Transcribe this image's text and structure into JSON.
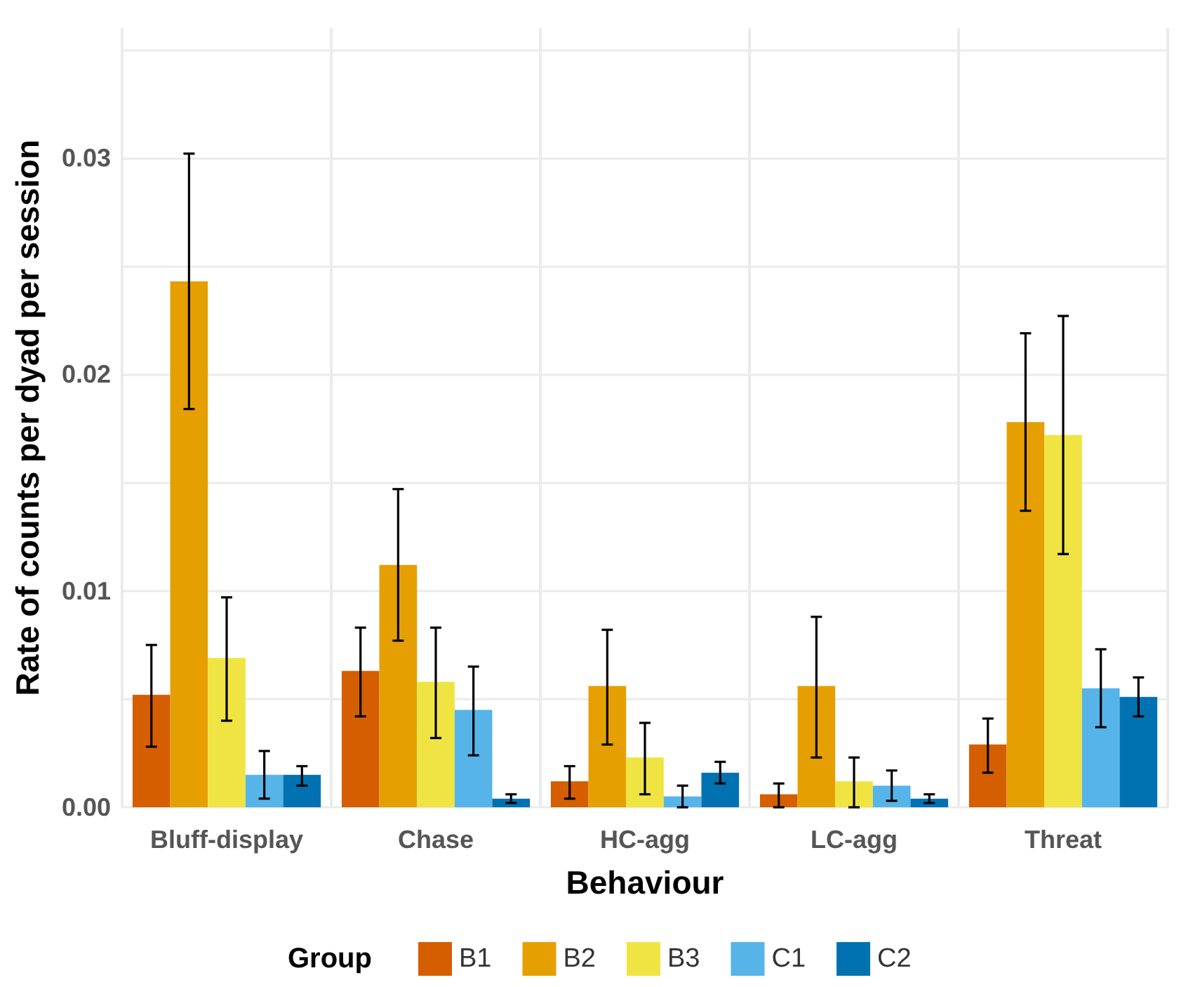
{
  "chart_data": {
    "type": "bar",
    "xlabel": "Behaviour",
    "ylabel": "Rate of counts per dyad per session",
    "legend_title": "Group",
    "legend": "bottom",
    "grid": true,
    "categories": [
      "Bluff-display",
      "Chase",
      "HC-agg",
      "LC-agg",
      "Threat"
    ],
    "ylim": [
      0,
      0.036
    ],
    "yticks": [
      {
        "value": 0,
        "label": "0.00"
      },
      {
        "value": 0.005,
        "label": null
      },
      {
        "value": 0.01,
        "label": "0.01"
      },
      {
        "value": 0.015,
        "label": null
      },
      {
        "value": 0.02,
        "label": "0.02"
      },
      {
        "value": 0.025,
        "label": null
      },
      {
        "value": 0.03,
        "label": "0.03"
      },
      {
        "value": 0.035,
        "label": null
      }
    ],
    "series": [
      {
        "name": "B1",
        "color": "#d55e00",
        "values": [
          0.0052,
          0.0063,
          0.0012,
          0.0006,
          0.0029
        ],
        "errors": [
          [
            0.0028,
            0.0075
          ],
          [
            0.0042,
            0.0083
          ],
          [
            0.0004,
            0.0019
          ],
          [
            0.0,
            0.0011
          ],
          [
            0.0016,
            0.0041
          ]
        ]
      },
      {
        "name": "B2",
        "color": "#e69f00",
        "values": [
          0.0243,
          0.0112,
          0.0056,
          0.0056,
          0.0178
        ],
        "errors": [
          [
            0.0184,
            0.0302
          ],
          [
            0.0077,
            0.0147
          ],
          [
            0.0029,
            0.0082
          ],
          [
            0.0023,
            0.0088
          ],
          [
            0.0137,
            0.0219
          ]
        ]
      },
      {
        "name": "B3",
        "color": "#f0e442",
        "values": [
          0.0069,
          0.0058,
          0.0023,
          0.0012,
          0.0172
        ],
        "errors": [
          [
            0.004,
            0.0097
          ],
          [
            0.0032,
            0.0083
          ],
          [
            0.0006,
            0.0039
          ],
          [
            0.0,
            0.0023
          ],
          [
            0.0117,
            0.0227
          ]
        ]
      },
      {
        "name": "C1",
        "color": "#56b4e9",
        "values": [
          0.0015,
          0.0045,
          0.0005,
          0.001,
          0.0055
        ],
        "errors": [
          [
            0.0004,
            0.0026
          ],
          [
            0.0024,
            0.0065
          ],
          [
            0.0,
            0.001
          ],
          [
            0.0003,
            0.0017
          ],
          [
            0.0037,
            0.0073
          ]
        ]
      },
      {
        "name": "C2",
        "color": "#0072b2",
        "values": [
          0.0015,
          0.0004,
          0.0016,
          0.0004,
          0.0051
        ],
        "errors": [
          [
            0.001,
            0.0019
          ],
          [
            0.0002,
            0.0006
          ],
          [
            0.0011,
            0.0021
          ],
          [
            0.0002,
            0.0006
          ],
          [
            0.0042,
            0.006
          ]
        ]
      }
    ]
  }
}
